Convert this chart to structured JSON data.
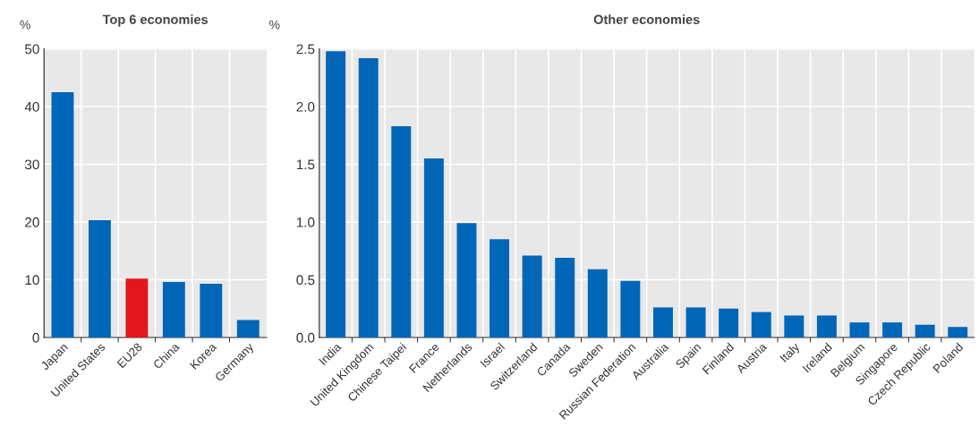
{
  "chart_data": [
    {
      "type": "bar",
      "title": "Top 6 economies",
      "ylabel": "%",
      "categories": [
        "Japan",
        "United States",
        "EU28",
        "China",
        "Korea",
        "Germany"
      ],
      "values": [
        42.5,
        20.3,
        10.2,
        9.6,
        9.3,
        3.0
      ],
      "colors": [
        "#0066b8",
        "#0066b8",
        "#e3161c",
        "#0066b8",
        "#0066b8",
        "#0066b8"
      ],
      "ylim": [
        0,
        50
      ],
      "yticks": [
        0,
        10,
        20,
        30,
        40,
        50
      ],
      "grid": true
    },
    {
      "type": "bar",
      "title": "Other economies",
      "ylabel": "%",
      "categories": [
        "India",
        "United Kingdom",
        "Chinese Taipei",
        "France",
        "Netherlands",
        "Israel",
        "Switzerland",
        "Canada",
        "Sweden",
        "Russian Federation",
        "Australia",
        "Spain",
        "Finland",
        "Austria",
        "Italy",
        "Ireland",
        "Belgium",
        "Singapore",
        "Czech Republic",
        "Poland"
      ],
      "values": [
        2.48,
        2.42,
        1.83,
        1.55,
        0.99,
        0.85,
        0.71,
        0.69,
        0.59,
        0.49,
        0.26,
        0.26,
        0.25,
        0.22,
        0.19,
        0.19,
        0.13,
        0.13,
        0.11,
        0.09
      ],
      "color": "#0066b8",
      "ylim": [
        0,
        2.5
      ],
      "yticks": [
        {
          "value": 0,
          "label": "0.0"
        },
        0.5,
        {
          "value": 1,
          "label": "1.0"
        },
        1.5,
        {
          "value": 2,
          "label": "2.0"
        },
        2.5
      ],
      "grid": true
    }
  ]
}
